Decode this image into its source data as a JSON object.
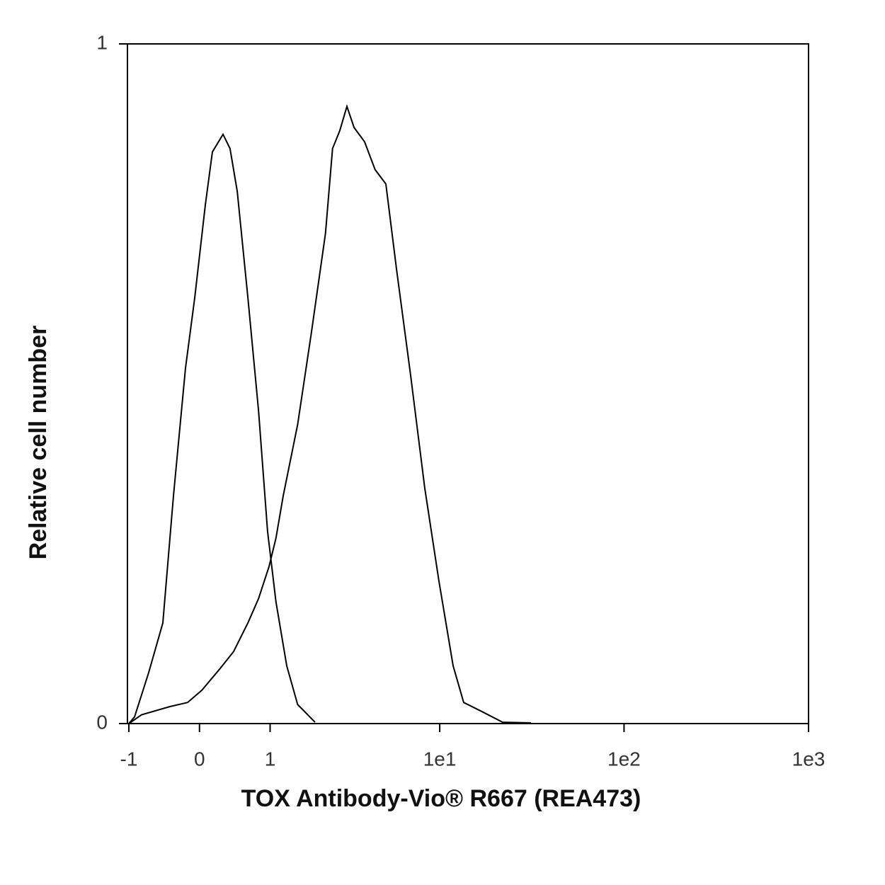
{
  "chart_data": {
    "type": "line",
    "x_label": "TOX Antibody-Vio® R667 (REA473)",
    "y_label": "Relative cell number",
    "xscale": "asinh",
    "xlim": [
      -1,
      1000
    ],
    "ylim": [
      0,
      1
    ],
    "xticks": [
      -1,
      0,
      1,
      {
        "value": 10,
        "label": "1e1"
      },
      {
        "value": 100,
        "label": "1e2"
      },
      {
        "value": 1000,
        "label": "1e3"
      }
    ],
    "yticks": [
      0,
      1
    ],
    "series": [
      {
        "color": "#000000",
        "x": [
          -1,
          -0.901,
          -0.677,
          -0.473,
          -0.33,
          -0.175,
          -0.059,
          0.073,
          0.162,
          0.298,
          0.391,
          0.489,
          0.641,
          0.806,
          0.956,
          1.107,
          1.318,
          1.555,
          1.998
        ],
        "values": [
          0,
          0.01,
          0.075,
          0.148,
          0.335,
          0.523,
          0.627,
          0.763,
          0.841,
          0.867,
          0.846,
          0.783,
          0.627,
          0.46,
          0.283,
          0.179,
          0.085,
          0.028,
          0.002
        ]
      },
      {
        "color": "#000000",
        "x": [
          -1,
          -0.787,
          -0.377,
          -0.149,
          0.029,
          0.253,
          0.439,
          0.641,
          0.806,
          0.981,
          1.107,
          1.246,
          1.555,
          1.896,
          2.305,
          2.537,
          2.79,
          3.07,
          3.37,
          3.86,
          4.42,
          5.07,
          5.8,
          6.93,
          8.29,
          9.9,
          11.83,
          13.5,
          16.85,
          21.97,
          31.3
        ],
        "values": [
          0,
          0.013,
          0.025,
          0.031,
          0.049,
          0.08,
          0.106,
          0.148,
          0.184,
          0.231,
          0.273,
          0.335,
          0.44,
          0.575,
          0.721,
          0.846,
          0.872,
          0.908,
          0.877,
          0.856,
          0.815,
          0.794,
          0.669,
          0.513,
          0.346,
          0.21,
          0.085,
          0.031,
          0.018,
          0.002,
          0.001
        ]
      }
    ]
  }
}
